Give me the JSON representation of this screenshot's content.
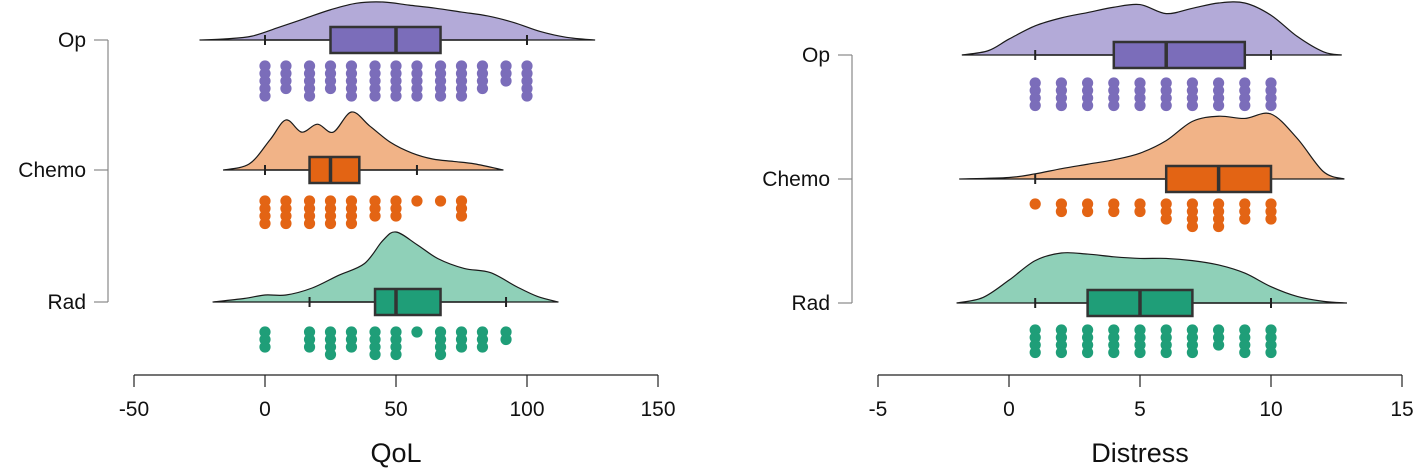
{
  "chart_data": [
    {
      "type": "raincloud",
      "title": "",
      "xlabel": "QoL",
      "ylabel": "",
      "xlim": [
        -50,
        150
      ],
      "xticks": [
        "-50",
        "0",
        "50",
        "100",
        "150"
      ],
      "xtick_values": [
        -50,
        0,
        50,
        100,
        150
      ],
      "groups": [
        {
          "name": "Op",
          "color": "#7B6DBA",
          "cloud_color": "#B3AAD8",
          "box": {
            "whisker_low": 0,
            "q1": 25,
            "median": 50,
            "q3": 67,
            "whisker_high": 100
          },
          "density_range": [
            -25,
            126
          ],
          "density": [
            [
              -25,
              0
            ],
            [
              -15,
              0.03
            ],
            [
              -5,
              0.1
            ],
            [
              5,
              0.32
            ],
            [
              15,
              0.55
            ],
            [
              25,
              0.78
            ],
            [
              35,
              0.95
            ],
            [
              45,
              0.98
            ],
            [
              55,
              0.9
            ],
            [
              65,
              0.82
            ],
            [
              75,
              0.72
            ],
            [
              85,
              0.62
            ],
            [
              95,
              0.45
            ],
            [
              105,
              0.22
            ],
            [
              115,
              0.07
            ],
            [
              126,
              0
            ]
          ],
          "points": [
            {
              "x": 0,
              "n": 5
            },
            {
              "x": 8,
              "n": 4
            },
            {
              "x": 17,
              "n": 5
            },
            {
              "x": 25,
              "n": 4
            },
            {
              "x": 33,
              "n": 5
            },
            {
              "x": 42,
              "n": 5
            },
            {
              "x": 50,
              "n": 5
            },
            {
              "x": 58,
              "n": 5
            },
            {
              "x": 67,
              "n": 5
            },
            {
              "x": 75,
              "n": 5
            },
            {
              "x": 83,
              "n": 4
            },
            {
              "x": 92,
              "n": 3
            },
            {
              "x": 100,
              "n": 5
            }
          ]
        },
        {
          "name": "Chemo",
          "color": "#E36414",
          "cloud_color": "#F1B387",
          "box": {
            "whisker_low": 0,
            "q1": 17,
            "median": 25,
            "q3": 36,
            "whisker_high": 58
          },
          "density_range": [
            -16,
            91
          ],
          "density": [
            [
              -16,
              0
            ],
            [
              -6,
              0.1
            ],
            [
              2,
              0.5
            ],
            [
              8,
              0.82
            ],
            [
              14,
              0.62
            ],
            [
              20,
              0.75
            ],
            [
              26,
              0.62
            ],
            [
              33,
              0.95
            ],
            [
              40,
              0.72
            ],
            [
              48,
              0.45
            ],
            [
              56,
              0.28
            ],
            [
              64,
              0.18
            ],
            [
              72,
              0.14
            ],
            [
              80,
              0.1
            ],
            [
              91,
              0
            ]
          ],
          "points": [
            {
              "x": 0,
              "n": 4
            },
            {
              "x": 8,
              "n": 4
            },
            {
              "x": 17,
              "n": 4
            },
            {
              "x": 25,
              "n": 4
            },
            {
              "x": 33,
              "n": 4
            },
            {
              "x": 42,
              "n": 3
            },
            {
              "x": 50,
              "n": 3
            },
            {
              "x": 58,
              "n": 1
            },
            {
              "x": 67,
              "n": 1
            },
            {
              "x": 75,
              "n": 3
            }
          ]
        },
        {
          "name": "Rad",
          "color": "#1F9E78",
          "cloud_color": "#8FD0B8",
          "box": {
            "whisker_low": 17,
            "q1": 42,
            "median": 50,
            "q3": 67,
            "whisker_high": 92
          },
          "density_range": [
            -20,
            112
          ],
          "density": [
            [
              -20,
              0
            ],
            [
              -8,
              0.05
            ],
            [
              0,
              0.1
            ],
            [
              8,
              0.1
            ],
            [
              18,
              0.2
            ],
            [
              28,
              0.38
            ],
            [
              38,
              0.55
            ],
            [
              45,
              0.88
            ],
            [
              50,
              1.0
            ],
            [
              58,
              0.82
            ],
            [
              66,
              0.62
            ],
            [
              76,
              0.48
            ],
            [
              86,
              0.42
            ],
            [
              96,
              0.22
            ],
            [
              104,
              0.08
            ],
            [
              112,
              0
            ]
          ],
          "points": [
            {
              "x": 0,
              "n": 3
            },
            {
              "x": 17,
              "n": 3
            },
            {
              "x": 25,
              "n": 4
            },
            {
              "x": 33,
              "n": 3
            },
            {
              "x": 42,
              "n": 4
            },
            {
              "x": 50,
              "n": 4
            },
            {
              "x": 58,
              "n": 1
            },
            {
              "x": 67,
              "n": 4
            },
            {
              "x": 75,
              "n": 3
            },
            {
              "x": 83,
              "n": 3
            },
            {
              "x": 92,
              "n": 2
            }
          ]
        }
      ]
    },
    {
      "type": "raincloud",
      "title": "",
      "xlabel": "Distress",
      "ylabel": "",
      "xlim": [
        -5,
        15
      ],
      "xticks": [
        "-5",
        "0",
        "5",
        "10",
        "15"
      ],
      "xtick_values": [
        -5,
        0,
        5,
        10,
        15
      ],
      "groups": [
        {
          "name": "Op",
          "color": "#7B6DBA",
          "cloud_color": "#B3AAD8",
          "box": {
            "whisker_low": 1,
            "q1": 4,
            "median": 6,
            "q3": 9,
            "whisker_high": 10
          },
          "density_range": [
            -1.8,
            12.7
          ],
          "density": [
            [
              -1.8,
              0
            ],
            [
              -0.8,
              0.08
            ],
            [
              0,
              0.3
            ],
            [
              1,
              0.55
            ],
            [
              2,
              0.7
            ],
            [
              3,
              0.8
            ],
            [
              4,
              0.9
            ],
            [
              5,
              0.95
            ],
            [
              6,
              0.78
            ],
            [
              7,
              0.88
            ],
            [
              8,
              0.98
            ],
            [
              9,
              0.98
            ],
            [
              10,
              0.75
            ],
            [
              11,
              0.35
            ],
            [
              12,
              0.06
            ],
            [
              12.7,
              0
            ]
          ],
          "points": [
            {
              "x": 1,
              "n": 4
            },
            {
              "x": 2,
              "n": 4
            },
            {
              "x": 3,
              "n": 4
            },
            {
              "x": 4,
              "n": 4
            },
            {
              "x": 5,
              "n": 4
            },
            {
              "x": 6,
              "n": 4
            },
            {
              "x": 7,
              "n": 4
            },
            {
              "x": 8,
              "n": 4
            },
            {
              "x": 9,
              "n": 4
            },
            {
              "x": 10,
              "n": 4
            }
          ]
        },
        {
          "name": "Chemo",
          "color": "#E36414",
          "cloud_color": "#F1B387",
          "box": {
            "whisker_low": 1,
            "q1": 6,
            "median": 8,
            "q3": 10,
            "whisker_high": 10
          },
          "density_range": [
            -1.9,
            12.8
          ],
          "density": [
            [
              -1.9,
              0
            ],
            [
              0,
              0.02
            ],
            [
              1,
              0.07
            ],
            [
              2,
              0.14
            ],
            [
              3,
              0.2
            ],
            [
              4,
              0.26
            ],
            [
              5,
              0.35
            ],
            [
              6,
              0.52
            ],
            [
              7,
              0.78
            ],
            [
              8,
              0.85
            ],
            [
              9,
              0.82
            ],
            [
              10,
              0.88
            ],
            [
              11,
              0.55
            ],
            [
              12,
              0.1
            ],
            [
              12.8,
              0
            ]
          ],
          "points": [
            {
              "x": 1,
              "n": 1
            },
            {
              "x": 2,
              "n": 2
            },
            {
              "x": 3,
              "n": 2
            },
            {
              "x": 4,
              "n": 2
            },
            {
              "x": 5,
              "n": 2
            },
            {
              "x": 6,
              "n": 3
            },
            {
              "x": 7,
              "n": 4
            },
            {
              "x": 8,
              "n": 4
            },
            {
              "x": 9,
              "n": 3
            },
            {
              "x": 10,
              "n": 3
            }
          ]
        },
        {
          "name": "Rad",
          "color": "#1F9E78",
          "cloud_color": "#8FD0B8",
          "box": {
            "whisker_low": 1,
            "q1": 3,
            "median": 5,
            "q3": 7,
            "whisker_high": 10
          },
          "density_range": [
            -2,
            12.9
          ],
          "density": [
            [
              -2,
              0
            ],
            [
              -1,
              0.1
            ],
            [
              0,
              0.42
            ],
            [
              1,
              0.78
            ],
            [
              2,
              0.92
            ],
            [
              3,
              0.9
            ],
            [
              4,
              0.85
            ],
            [
              5,
              0.82
            ],
            [
              6,
              0.82
            ],
            [
              7,
              0.78
            ],
            [
              8,
              0.7
            ],
            [
              9,
              0.55
            ],
            [
              10,
              0.3
            ],
            [
              11,
              0.12
            ],
            [
              12,
              0.03
            ],
            [
              12.9,
              0
            ]
          ],
          "points": [
            {
              "x": 1,
              "n": 4
            },
            {
              "x": 2,
              "n": 4
            },
            {
              "x": 3,
              "n": 4
            },
            {
              "x": 4,
              "n": 4
            },
            {
              "x": 5,
              "n": 4
            },
            {
              "x": 6,
              "n": 4
            },
            {
              "x": 7,
              "n": 4
            },
            {
              "x": 8,
              "n": 3
            },
            {
              "x": 9,
              "n": 4
            },
            {
              "x": 10,
              "n": 4
            }
          ]
        }
      ]
    }
  ]
}
